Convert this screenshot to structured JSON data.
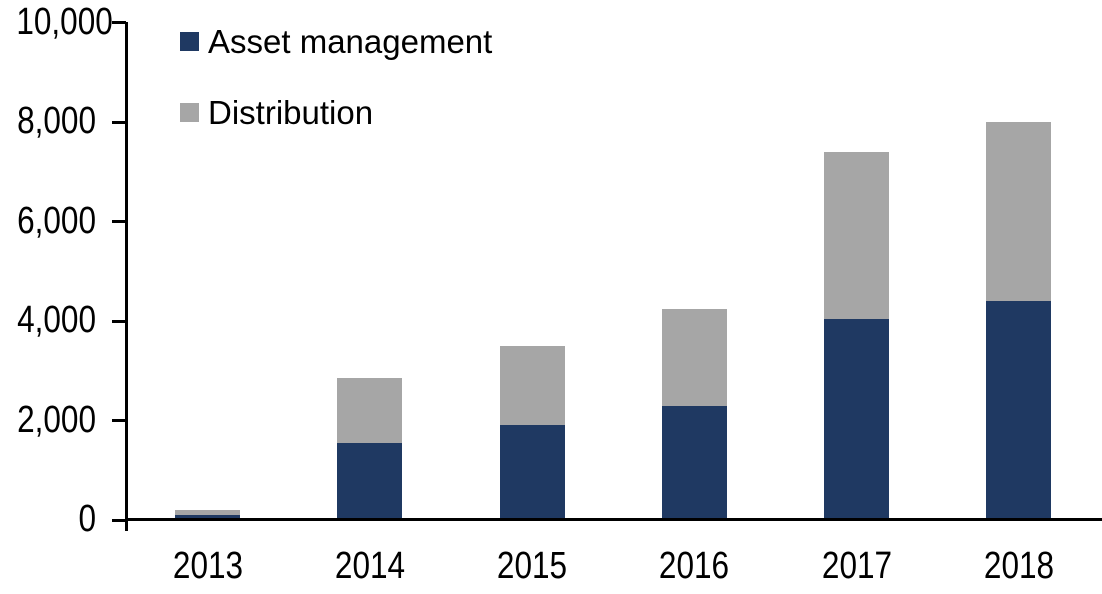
{
  "chart_data": {
    "type": "bar",
    "stacked": true,
    "title": "",
    "xlabel": "",
    "ylabel": "",
    "categories": [
      "2013",
      "2014",
      "2015",
      "2016",
      "2017",
      "2018"
    ],
    "series": [
      {
        "name": "Asset management",
        "color": "#1F3962",
        "values": [
          110,
          1550,
          1900,
          2300,
          4050,
          4400
        ]
      },
      {
        "name": "Distribution",
        "color": "#A6A6A6",
        "values": [
          90,
          1300,
          1600,
          1950,
          3350,
          3600
        ]
      }
    ],
    "totals": [
      200,
      2850,
      3500,
      4250,
      7400,
      8000
    ],
    "ylim": [
      0,
      10000
    ],
    "ytick_step": 2000,
    "ytick_labels": [
      "0",
      "2,000",
      "4,000",
      "6,000",
      "8,000",
      "10,000"
    ],
    "grid": false,
    "legend_position": "top-left-inside",
    "axis_color": "#000000",
    "background_color": "#FFFFFF"
  }
}
